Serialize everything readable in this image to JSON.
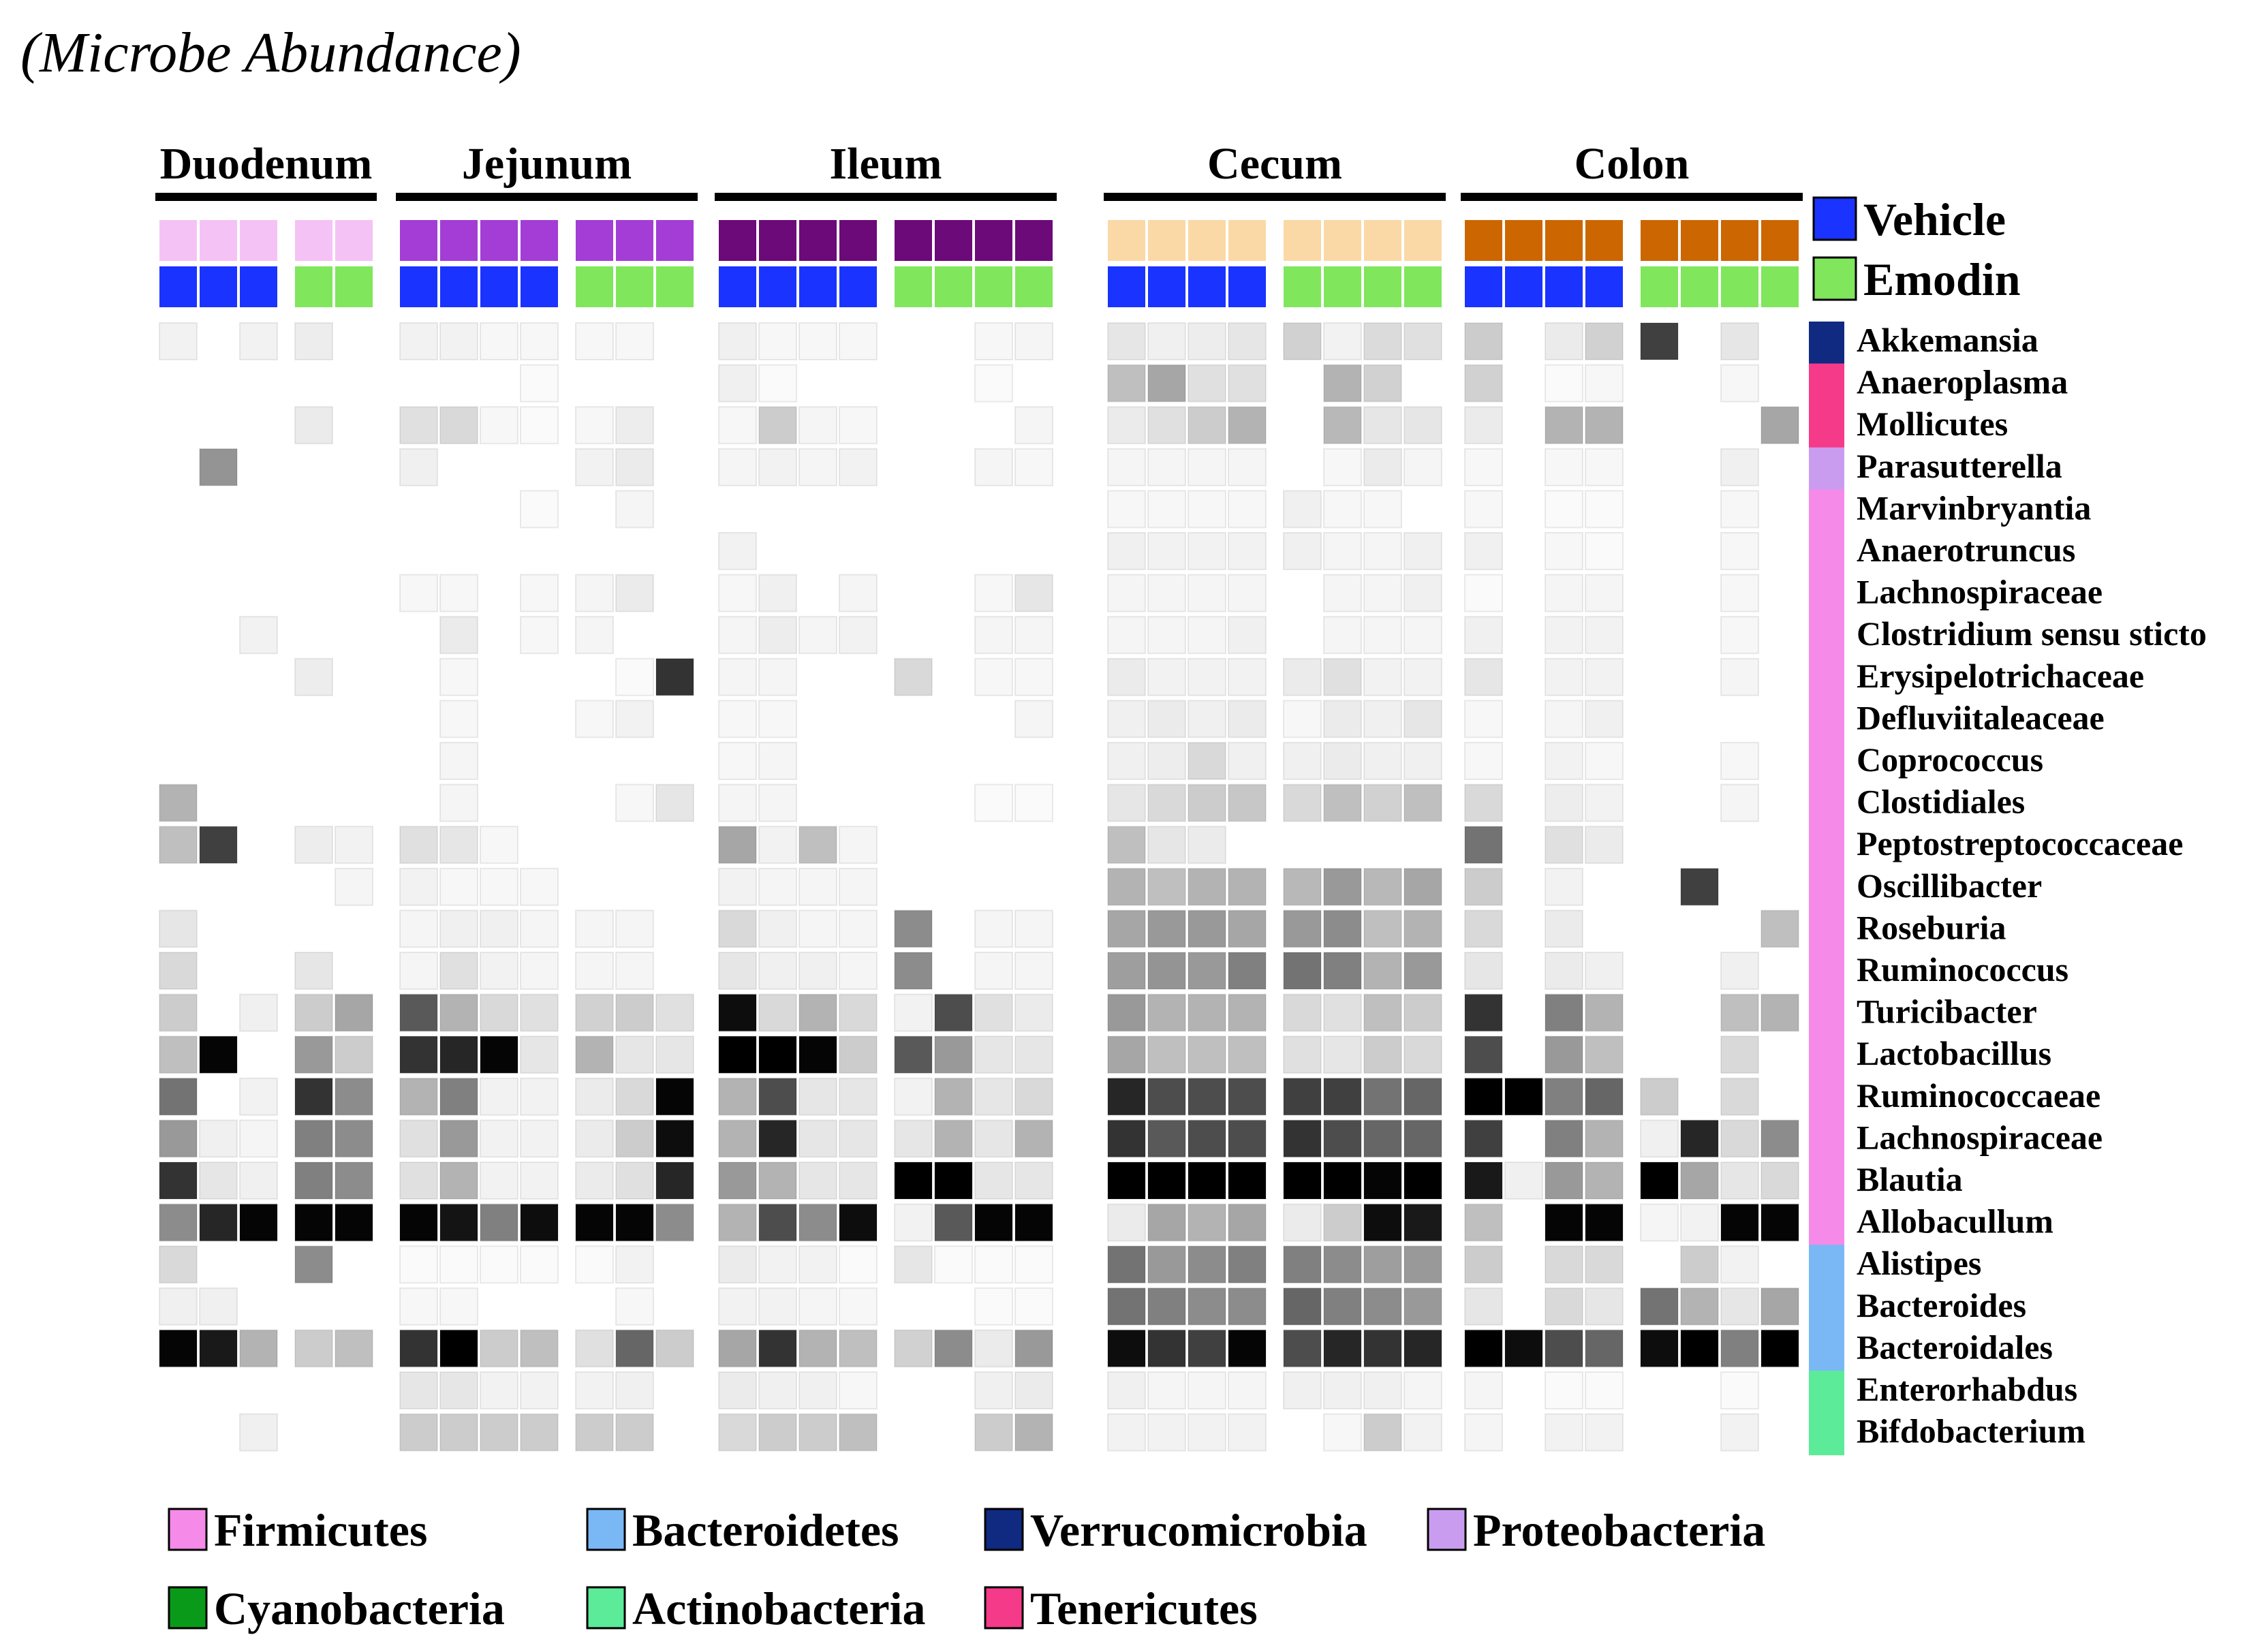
{
  "chart_data": {
    "type": "heatmap",
    "title": "(Microbe Abundance)",
    "value_scale": "relative abundance, 0 = white, 1 = black",
    "regions": [
      {
        "name": "Duodenum",
        "color": "#f5c2f5",
        "columns": [
          "Vehicle",
          "Vehicle",
          "Vehicle",
          "Emodin",
          "Emodin"
        ]
      },
      {
        "name": "Jejunum",
        "color": "#a33dd6",
        "columns": [
          "Vehicle",
          "Vehicle",
          "Vehicle",
          "Vehicle",
          "Emodin",
          "Emodin",
          "Emodin"
        ]
      },
      {
        "name": "Ileum",
        "color": "#6b0a78",
        "columns": [
          "Vehicle",
          "Vehicle",
          "Vehicle",
          "Vehicle",
          "Emodin",
          "Emodin",
          "Emodin",
          "Emodin"
        ]
      },
      {
        "name": "Cecum",
        "color": "#fad9a6",
        "columns": [
          "Vehicle",
          "Vehicle",
          "Vehicle",
          "Vehicle",
          "Emodin",
          "Emodin",
          "Emodin",
          "Emodin"
        ]
      },
      {
        "name": "Colon",
        "color": "#cc6600",
        "columns": [
          "Vehicle",
          "Vehicle",
          "Vehicle",
          "Vehicle",
          "Emodin",
          "Emodin",
          "Emodin",
          "Emodin"
        ]
      }
    ],
    "treatments": [
      {
        "name": "Vehicle",
        "color": "#1a33ff"
      },
      {
        "name": "Emodin",
        "color": "#80e65c"
      }
    ],
    "phyla": [
      {
        "name": "Firmicutes",
        "color": "#f58ae8"
      },
      {
        "name": "Bacteroidetes",
        "color": "#7ab8f5"
      },
      {
        "name": "Verrucomicrobia",
        "color": "#0f2a80"
      },
      {
        "name": "Proteobacteria",
        "color": "#c99cf0"
      },
      {
        "name": "Cyanobacteria",
        "color": "#0a9a1a"
      },
      {
        "name": "Actinobacteria",
        "color": "#5ceb99"
      },
      {
        "name": "Tenericutes",
        "color": "#f53a8a"
      }
    ],
    "taxa": [
      {
        "name": "Akkemansia",
        "phylum": "Verrucomicrobia"
      },
      {
        "name": "Anaeroplasma",
        "phylum": "Tenericutes"
      },
      {
        "name": "Mollicutes",
        "phylum": "Tenericutes"
      },
      {
        "name": "Parasutterella",
        "phylum": "Proteobacteria"
      },
      {
        "name": "Marvinbryantia",
        "phylum": "Firmicutes"
      },
      {
        "name": "Anaerotruncus",
        "phylum": "Firmicutes"
      },
      {
        "name": "Lachnospiraceae",
        "phylum": "Firmicutes"
      },
      {
        "name": "Clostridium sensu sticto",
        "phylum": "Firmicutes"
      },
      {
        "name": "Erysipelotrichaceae",
        "phylum": "Firmicutes"
      },
      {
        "name": "Defluviitaleaceae",
        "phylum": "Firmicutes"
      },
      {
        "name": "Coprococcus",
        "phylum": "Firmicutes"
      },
      {
        "name": "Clostidiales",
        "phylum": "Firmicutes"
      },
      {
        "name": "Peptostreptococcaceae",
        "phylum": "Firmicutes"
      },
      {
        "name": "Oscillibacter",
        "phylum": "Firmicutes"
      },
      {
        "name": "Roseburia",
        "phylum": "Firmicutes"
      },
      {
        "name": "Ruminococcus",
        "phylum": "Firmicutes"
      },
      {
        "name": "Turicibacter",
        "phylum": "Firmicutes"
      },
      {
        "name": "Lactobacillus",
        "phylum": "Firmicutes"
      },
      {
        "name": "Ruminococcaeae",
        "phylum": "Firmicutes"
      },
      {
        "name": "Lachnospiraceae",
        "phylum": "Firmicutes"
      },
      {
        "name": "Blautia",
        "phylum": "Firmicutes"
      },
      {
        "name": "Allobacullum",
        "phylum": "Firmicutes"
      },
      {
        "name": "Alistipes",
        "phylum": "Bacteroidetes"
      },
      {
        "name": "Bacteroides",
        "phylum": "Bacteroidetes"
      },
      {
        "name": "Bacteroidales",
        "phylum": "Bacteroidetes"
      },
      {
        "name": "Enterorhabdus",
        "phylum": "Actinobacteria"
      },
      {
        "name": "Bifdobacterium",
        "phylum": "Actinobacteria"
      }
    ],
    "values": [
      [
        0.05,
        0,
        0.05,
        0.07,
        0,
        0.05,
        0.05,
        0.03,
        0.03,
        0.03,
        0.03,
        0,
        0.06,
        0.03,
        0.03,
        0.03,
        0,
        0,
        0.03,
        0.04,
        0.1,
        0.06,
        0.07,
        0.1,
        0.18,
        0.05,
        0.14,
        0.12,
        0.2,
        0,
        0.08,
        0.18,
        0.75,
        0,
        0.1,
        0
      ],
      [
        0,
        0,
        0,
        0,
        0,
        0,
        0,
        0,
        0.02,
        0,
        0,
        0,
        0.06,
        0.02,
        0,
        0,
        0,
        0,
        0.02,
        0,
        0.25,
        0.35,
        0.12,
        0.12,
        0,
        0.3,
        0.18,
        0,
        0.18,
        0,
        0.02,
        0.03,
        0,
        0,
        0.03,
        0
      ],
      [
        0,
        0,
        0,
        0.08,
        0,
        0.12,
        0.15,
        0.03,
        0.02,
        0.03,
        0.07,
        0,
        0.03,
        0.2,
        0.04,
        0.03,
        0,
        0,
        0,
        0.04,
        0.08,
        0.12,
        0.2,
        0.3,
        0,
        0.28,
        0.1,
        0.1,
        0.08,
        0,
        0.3,
        0.3,
        0,
        0,
        0,
        0.35
      ],
      [
        0,
        0.42,
        0,
        0,
        0,
        0.06,
        0,
        0,
        0,
        0.05,
        0.08,
        0,
        0.04,
        0.05,
        0.04,
        0.05,
        0,
        0,
        0.04,
        0.03,
        0.04,
        0.04,
        0.04,
        0.04,
        0,
        0.03,
        0.08,
        0.04,
        0.03,
        0,
        0.03,
        0.03,
        0,
        0,
        0.06,
        0
      ],
      [
        0,
        0,
        0,
        0,
        0,
        0,
        0,
        0,
        0.02,
        0,
        0.04,
        0,
        0,
        0,
        0,
        0,
        0,
        0,
        0,
        0,
        0.03,
        0.03,
        0.03,
        0.03,
        0.06,
        0.03,
        0.03,
        0,
        0.03,
        0,
        0.02,
        0.02,
        0,
        0,
        0.03,
        0
      ],
      [
        0,
        0,
        0,
        0,
        0,
        0,
        0,
        0,
        0,
        0,
        0,
        0,
        0.05,
        0,
        0,
        0,
        0,
        0,
        0,
        0,
        0.06,
        0.05,
        0.05,
        0.05,
        0.06,
        0.04,
        0.04,
        0.06,
        0.06,
        0,
        0.03,
        0.02,
        0,
        0,
        0.03,
        0
      ],
      [
        0,
        0,
        0,
        0,
        0,
        0.03,
        0.03,
        0,
        0.03,
        0.04,
        0.08,
        0,
        0.03,
        0.06,
        0,
        0.04,
        0,
        0,
        0.03,
        0.1,
        0.04,
        0.04,
        0.04,
        0.04,
        0,
        0.04,
        0.04,
        0.06,
        0.02,
        0,
        0.04,
        0.04,
        0,
        0,
        0.03,
        0
      ],
      [
        0,
        0,
        0.05,
        0,
        0,
        0,
        0.08,
        0,
        0.03,
        0.04,
        0,
        0,
        0.04,
        0.07,
        0.04,
        0.05,
        0,
        0,
        0.04,
        0.04,
        0.04,
        0.04,
        0.04,
        0.06,
        0,
        0.04,
        0.04,
        0.04,
        0.06,
        0,
        0.05,
        0.05,
        0,
        0,
        0.03,
        0
      ],
      [
        0,
        0,
        0,
        0.07,
        0,
        0,
        0.03,
        0,
        0,
        0,
        0.02,
        0.8,
        0.04,
        0.04,
        0,
        0,
        0.15,
        0,
        0.03,
        0.03,
        0.08,
        0.05,
        0.05,
        0.05,
        0.08,
        0.12,
        0.05,
        0.05,
        0.1,
        0,
        0.05,
        0.05,
        0,
        0,
        0.04,
        0
      ],
      [
        0,
        0,
        0,
        0,
        0,
        0,
        0.03,
        0,
        0,
        0.03,
        0.05,
        0,
        0.03,
        0.03,
        0,
        0,
        0,
        0,
        0,
        0.04,
        0.06,
        0.08,
        0.06,
        0.08,
        0.03,
        0.08,
        0.06,
        0.1,
        0.03,
        0,
        0.04,
        0.06,
        0,
        0,
        0,
        0
      ],
      [
        0,
        0,
        0,
        0,
        0,
        0,
        0.04,
        0,
        0,
        0,
        0,
        0,
        0.03,
        0.04,
        0,
        0,
        0,
        0,
        0,
        0,
        0.06,
        0.07,
        0.15,
        0.06,
        0.06,
        0.08,
        0.06,
        0.06,
        0.03,
        0,
        0.05,
        0.03,
        0,
        0,
        0.03,
        0
      ],
      [
        0.3,
        0,
        0,
        0,
        0,
        0,
        0.04,
        0,
        0,
        0,
        0.03,
        0.1,
        0.04,
        0.04,
        0,
        0,
        0,
        0,
        0.02,
        0.02,
        0.1,
        0.15,
        0.2,
        0.22,
        0.15,
        0.25,
        0.18,
        0.25,
        0.15,
        0,
        0.07,
        0.05,
        0,
        0,
        0.04,
        0
      ],
      [
        0.25,
        0.75,
        0,
        0.07,
        0.05,
        0.12,
        0.1,
        0.03,
        0,
        0,
        0,
        0,
        0.35,
        0.05,
        0.25,
        0.04,
        0,
        0,
        0,
        0,
        0.25,
        0.1,
        0.08,
        0,
        0,
        0,
        0,
        0,
        0.55,
        0,
        0.12,
        0.08,
        0,
        0,
        0,
        0
      ],
      [
        0,
        0,
        0,
        0,
        0.04,
        0.05,
        0.03,
        0.03,
        0.03,
        0,
        0,
        0,
        0.05,
        0.04,
        0.04,
        0.04,
        0,
        0,
        0,
        0,
        0.3,
        0.25,
        0.3,
        0.3,
        0.28,
        0.4,
        0.28,
        0.35,
        0.2,
        0,
        0.05,
        0,
        0,
        0.75,
        0,
        0
      ],
      [
        0.1,
        0,
        0,
        0,
        0,
        0.04,
        0.06,
        0.06,
        0.04,
        0.04,
        0.04,
        0,
        0.15,
        0.06,
        0.04,
        0.04,
        0.45,
        0,
        0.04,
        0.04,
        0.35,
        0.4,
        0.4,
        0.35,
        0.4,
        0.45,
        0.25,
        0.3,
        0.15,
        0,
        0.08,
        0,
        0,
        0,
        0,
        0.25
      ],
      [
        0.15,
        0,
        0,
        0.1,
        0,
        0.04,
        0.12,
        0.05,
        0.04,
        0.04,
        0.04,
        0,
        0.1,
        0.06,
        0.06,
        0.04,
        0.45,
        0,
        0.04,
        0.04,
        0.38,
        0.42,
        0.4,
        0.5,
        0.55,
        0.5,
        0.3,
        0.4,
        0.1,
        0,
        0.08,
        0.06,
        0,
        0,
        0.06,
        0
      ],
      [
        0.2,
        0,
        0.06,
        0.2,
        0.35,
        0.65,
        0.3,
        0.15,
        0.12,
        0.18,
        0.2,
        0.12,
        0.95,
        0.15,
        0.3,
        0.15,
        0.05,
        0.7,
        0.12,
        0.08,
        0.4,
        0.3,
        0.3,
        0.3,
        0.15,
        0.12,
        0.25,
        0.2,
        0.8,
        0,
        0.5,
        0.3,
        0,
        0,
        0.25,
        0.3
      ],
      [
        0.25,
        0.98,
        0,
        0.4,
        0.2,
        0.8,
        0.85,
        0.98,
        0.1,
        0.3,
        0.1,
        0.1,
        1,
        1,
        0.98,
        0.2,
        0.65,
        0.4,
        0.1,
        0.1,
        0.35,
        0.25,
        0.25,
        0.25,
        0.12,
        0.1,
        0.2,
        0.15,
        0.7,
        0,
        0.4,
        0.25,
        0,
        0,
        0.15,
        0
      ],
      [
        0.55,
        0,
        0.05,
        0.8,
        0.45,
        0.3,
        0.5,
        0.05,
        0.05,
        0.08,
        0.15,
        0.98,
        0.3,
        0.7,
        0.1,
        0.1,
        0.05,
        0.3,
        0.1,
        0.15,
        0.85,
        0.7,
        0.7,
        0.7,
        0.75,
        0.75,
        0.55,
        0.6,
        1,
        1,
        0.5,
        0.6,
        0.2,
        0,
        0.15,
        0
      ],
      [
        0.4,
        0.06,
        0.04,
        0.5,
        0.45,
        0.12,
        0.4,
        0.05,
        0.05,
        0.08,
        0.2,
        0.95,
        0.3,
        0.85,
        0.1,
        0.1,
        0.1,
        0.3,
        0.1,
        0.3,
        0.8,
        0.65,
        0.7,
        0.7,
        0.8,
        0.7,
        0.6,
        0.6,
        0.75,
        0,
        0.5,
        0.3,
        0.06,
        0.85,
        0.15,
        0.45
      ],
      [
        0.8,
        0.1,
        0.06,
        0.5,
        0.45,
        0.12,
        0.3,
        0.05,
        0.05,
        0.08,
        0.12,
        0.85,
        0.4,
        0.3,
        0.1,
        0.1,
        1,
        1,
        0.1,
        0.1,
        1,
        1,
        1,
        1,
        1,
        1,
        0.98,
        1,
        0.9,
        0.06,
        0.4,
        0.3,
        1,
        0.35,
        0.1,
        0.15
      ],
      [
        0.45,
        0.85,
        0.98,
        0.98,
        0.98,
        0.98,
        0.92,
        0.5,
        0.95,
        0.98,
        0.98,
        0.45,
        0.3,
        0.7,
        0.45,
        0.95,
        0.05,
        0.65,
        0.98,
        0.98,
        0.08,
        0.35,
        0.3,
        0.35,
        0.08,
        0.2,
        0.95,
        0.9,
        0.25,
        0,
        0.98,
        0.98,
        0.04,
        0.05,
        0.98,
        0.98
      ],
      [
        0.15,
        0,
        0,
        0.45,
        0,
        0.02,
        0.02,
        0.02,
        0.02,
        0.02,
        0.05,
        0,
        0.08,
        0.05,
        0.05,
        0.02,
        0.1,
        0.02,
        0.02,
        0.02,
        0.55,
        0.4,
        0.45,
        0.5,
        0.5,
        0.45,
        0.38,
        0.4,
        0.2,
        0,
        0.15,
        0.15,
        0,
        0.2,
        0.05,
        0
      ],
      [
        0.06,
        0.06,
        0,
        0,
        0,
        0.03,
        0.03,
        0,
        0,
        0,
        0.03,
        0,
        0.05,
        0.05,
        0.04,
        0.03,
        0,
        0,
        0.02,
        0.02,
        0.55,
        0.5,
        0.45,
        0.45,
        0.6,
        0.5,
        0.45,
        0.4,
        0.1,
        0,
        0.15,
        0.1,
        0.55,
        0.3,
        0.1,
        0.35
      ],
      [
        0.98,
        0.9,
        0.3,
        0.2,
        0.25,
        0.8,
        1,
        0.2,
        0.25,
        0.12,
        0.6,
        0.2,
        0.35,
        0.8,
        0.3,
        0.25,
        0.18,
        0.45,
        0.08,
        0.4,
        0.95,
        0.8,
        0.75,
        0.98,
        0.7,
        0.85,
        0.8,
        0.85,
        1,
        0.95,
        0.7,
        0.6,
        0.95,
        1,
        0.5,
        1
      ],
      [
        0,
        0,
        0,
        0,
        0,
        0.1,
        0.1,
        0.05,
        0.05,
        0.05,
        0.06,
        0,
        0.08,
        0.06,
        0.06,
        0.03,
        0,
        0,
        0.06,
        0.08,
        0.06,
        0.04,
        0.04,
        0.04,
        0.06,
        0.06,
        0.06,
        0.04,
        0.04,
        0,
        0.02,
        0.02,
        0,
        0,
        0.02,
        0
      ],
      [
        0,
        0,
        0.06,
        0,
        0,
        0.2,
        0.2,
        0.2,
        0.2,
        0.2,
        0.2,
        0,
        0.15,
        0.2,
        0.2,
        0.25,
        0,
        0,
        0.2,
        0.3,
        0.05,
        0.05,
        0.05,
        0.05,
        0,
        0.03,
        0.2,
        0.05,
        0.04,
        0,
        0.05,
        0.05,
        0,
        0,
        0.05,
        0
      ]
    ],
    "legend_position": "bottom"
  }
}
